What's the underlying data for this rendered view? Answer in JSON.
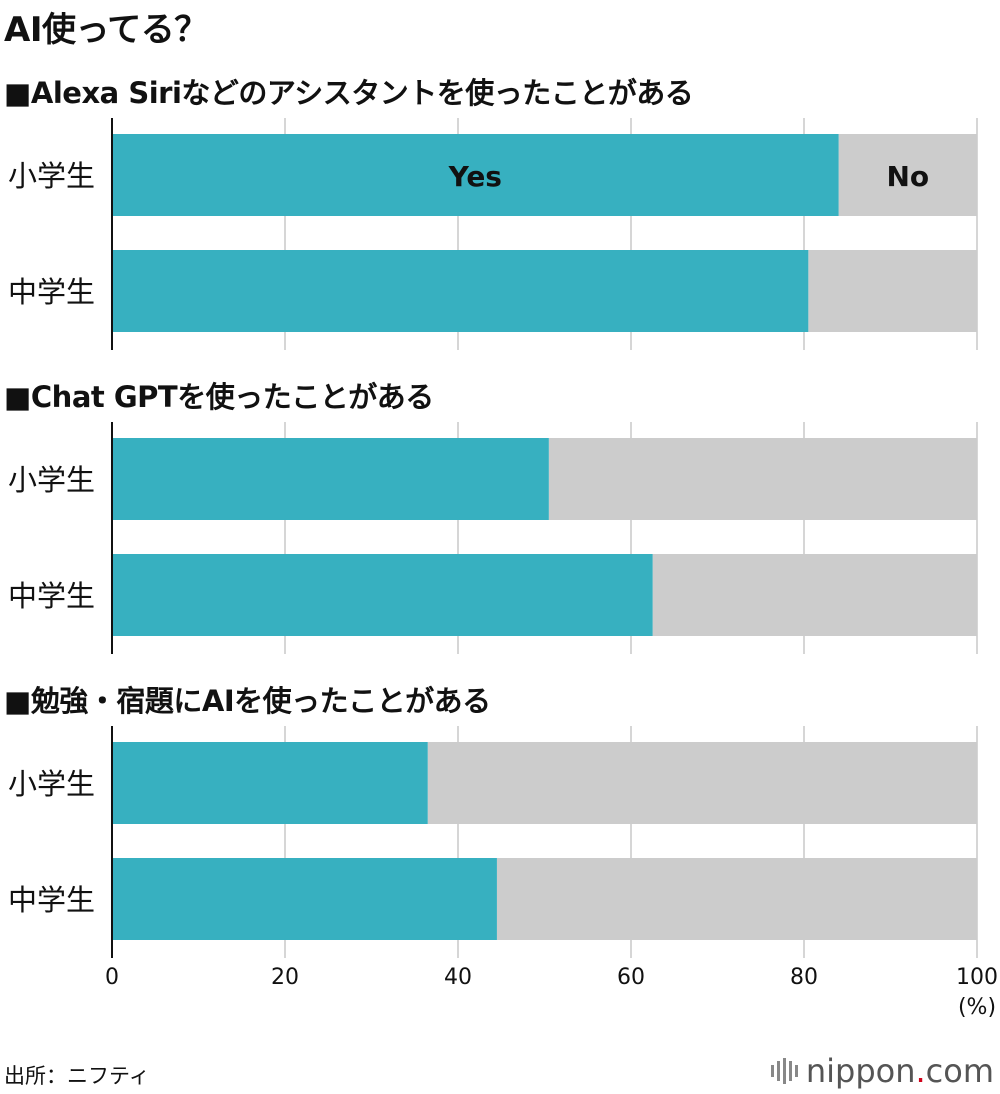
{
  "title": "AI使ってる？",
  "source": "出所：ニフティ",
  "logo": {
    "name": "nippon",
    "dot": ".",
    "domain": "com"
  },
  "colors": {
    "yes": "#37b0c0",
    "no": "#cccccc",
    "grid": "#bbbbbb",
    "axis": "#111111"
  },
  "chart_data": {
    "type": "bar",
    "orientation": "horizontal-stacked",
    "xlim": [
      0,
      100
    ],
    "xticks": [
      "0",
      "20",
      "40",
      "60",
      "80",
      "100"
    ],
    "unit": "(%)",
    "legend": {
      "yes": "Yes",
      "no": "No"
    },
    "groups": [
      {
        "title": "■Alexa Siriなどのアシスタントを使ったことがある",
        "categories": [
          "小学生",
          "中学生"
        ],
        "yes": [
          84,
          80.5
        ]
      },
      {
        "title": "■Chat GPTを使ったことがある",
        "categories": [
          "小学生",
          "中学生"
        ],
        "yes": [
          50.5,
          62.5
        ]
      },
      {
        "title": "■勉強・宿題にAIを使ったことがある",
        "categories": [
          "小学生",
          "中学生"
        ],
        "yes": [
          36.5,
          44.5
        ]
      }
    ]
  }
}
